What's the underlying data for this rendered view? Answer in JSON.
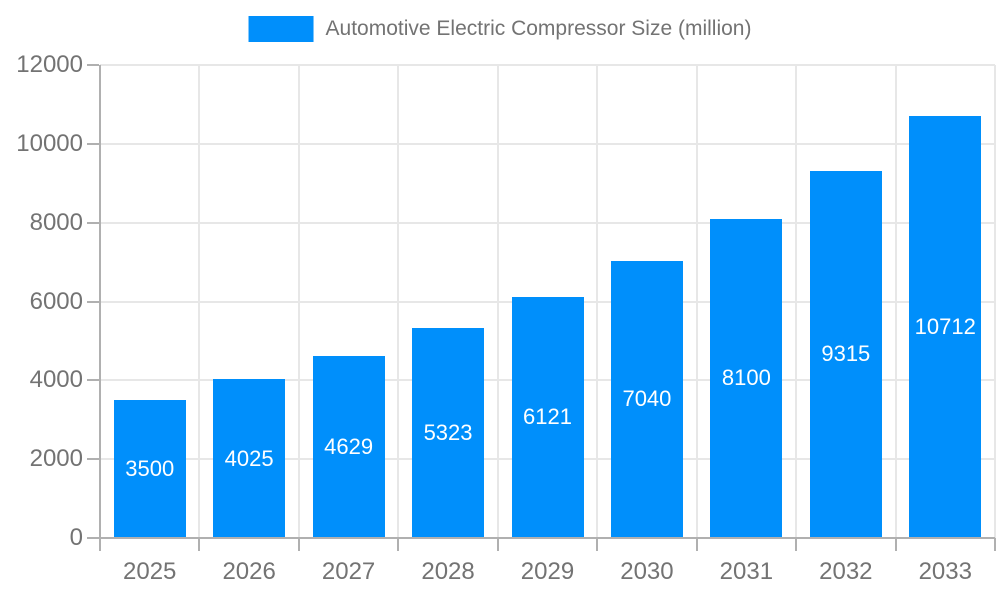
{
  "chart_data": {
    "type": "bar",
    "title": "Automotive Electric Compressor Size (million)",
    "legend_entries": [
      "Automotive Electric Compressor Size (million)"
    ],
    "legend_position": "top",
    "categories": [
      "2025",
      "2026",
      "2027",
      "2028",
      "2029",
      "2030",
      "2031",
      "2032",
      "2033"
    ],
    "values": [
      3500,
      4025,
      4629,
      5323,
      6121,
      7040,
      8100,
      9315,
      10712
    ],
    "value_labels": [
      "3500",
      "4025",
      "4629",
      "5323",
      "6121",
      "7040",
      "8100",
      "9315",
      "10712"
    ],
    "xlabel": "",
    "ylabel": "",
    "ylim": [
      0,
      12000
    ],
    "ytick_step": 2000,
    "ytick_labels": [
      "0",
      "2000",
      "4000",
      "6000",
      "8000",
      "10000",
      "12000"
    ],
    "grid": true,
    "colors": {
      "bar": "#008FFB",
      "value_label": "#ffffff",
      "axis_label": "#737373",
      "legend_label": "#737373",
      "grid_line": "#e7e7e7",
      "axis_line": "#b0b0b0"
    }
  }
}
